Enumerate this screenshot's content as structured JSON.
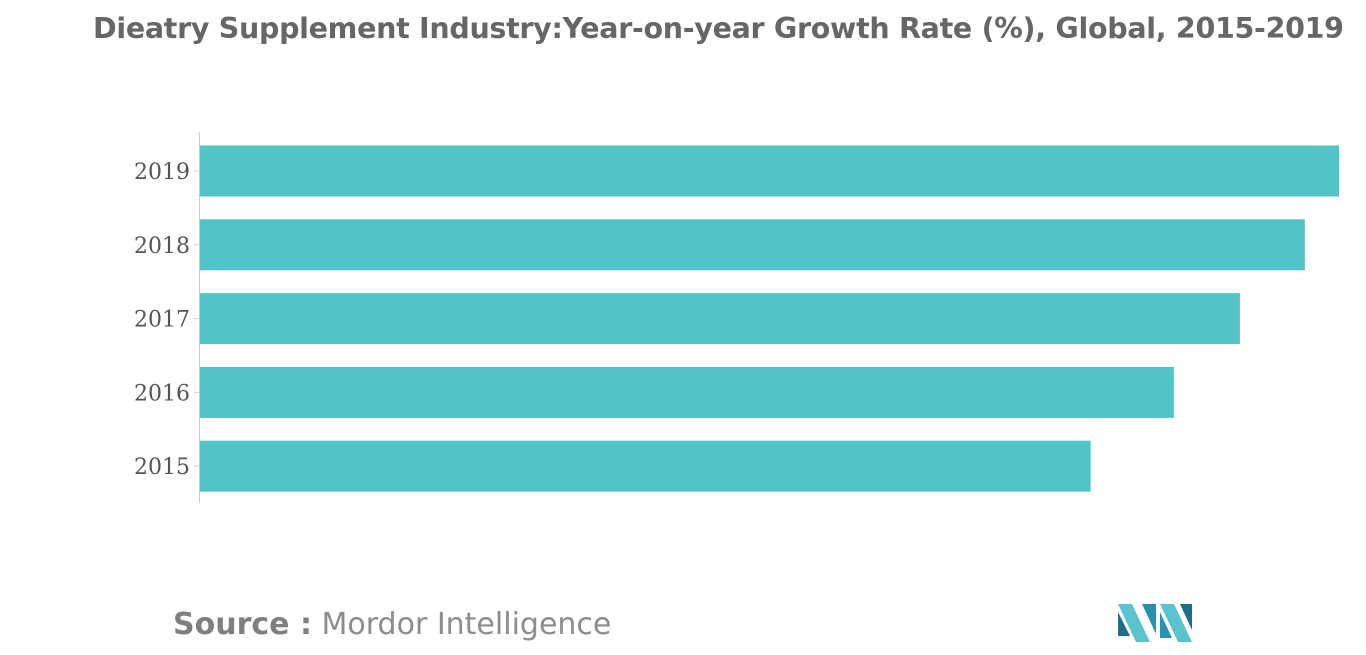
{
  "chart_data": {
    "type": "bar",
    "orientation": "horizontal",
    "title": "Dieatry Supplement Industry:Year-on-year Growth Rate (%), Global, 2015-2019",
    "categories": [
      "2019",
      "2018",
      "2017",
      "2016",
      "2015"
    ],
    "values": [
      100,
      97,
      91.3,
      85.5,
      78.2
    ],
    "xlim": [
      0,
      100
    ],
    "xlabel": "",
    "ylabel": "",
    "grid": false,
    "legend": "none",
    "bar_color": "#52c3c9"
  },
  "source": {
    "label": "Source :",
    "name": "Mordor Intelligence"
  },
  "logo": {
    "icon": "mordor-intelligence-logo",
    "colors": [
      "#1f6f8b",
      "#5bc2d0",
      "#2a8fb0"
    ]
  }
}
